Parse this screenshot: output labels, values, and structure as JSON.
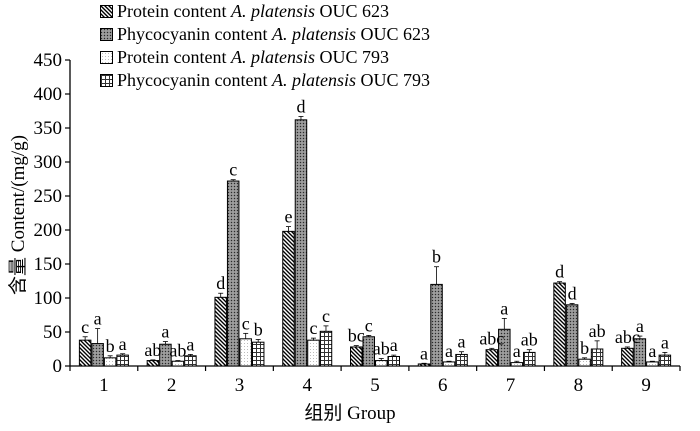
{
  "chart_data": {
    "type": "bar",
    "xlabel": "组别 Group",
    "ylabel": "含量 Content/(mg/g)",
    "ylim": [
      0,
      450
    ],
    "yticks": [
      "0",
      "50",
      "100",
      "150",
      "200",
      "250",
      "300",
      "350",
      "400",
      "450"
    ],
    "categories": [
      "1",
      "2",
      "3",
      "4",
      "5",
      "6",
      "7",
      "8",
      "9"
    ],
    "series": [
      {
        "name_prefix": "Protein content",
        "name_species": "A. platensis",
        "name_strain": "OUC 623",
        "pattern": "diag",
        "values": [
          38,
          8,
          101,
          198,
          28,
          3,
          24,
          122,
          26
        ],
        "errors": [
          5,
          1,
          6,
          7,
          2,
          1,
          2,
          2,
          2
        ],
        "letters": [
          "c",
          "ab",
          "d",
          "e",
          "bc",
          "a",
          "abc",
          "d",
          "abc"
        ]
      },
      {
        "name_prefix": "Phycocyanin content",
        "name_species": "A. platensis",
        "name_strain": "OUC 623",
        "pattern": "cross",
        "values": [
          33,
          32,
          272,
          362,
          43,
          120,
          54,
          90,
          40
        ],
        "errors": [
          22,
          4,
          2,
          5,
          2,
          26,
          16,
          2,
          4
        ],
        "letters": [
          "a",
          "a",
          "c",
          "d",
          "c",
          "b",
          "a",
          "d",
          "a"
        ]
      },
      {
        "name_prefix": "Protein content",
        "name_species": "A. platensis",
        "name_strain": "OUC 793",
        "pattern": "dots",
        "values": [
          12,
          7,
          40,
          38,
          8,
          6,
          5,
          10,
          6
        ],
        "errors": [
          3,
          1,
          8,
          3,
          3,
          1,
          2,
          2,
          1
        ],
        "letters": [
          "b",
          "ab",
          "c",
          "c",
          "ab",
          "a",
          "a",
          "b",
          "a"
        ]
      },
      {
        "name_prefix": "Phycocyanin content",
        "name_species": "A. platensis",
        "name_strain": "OUC 793",
        "pattern": "grid",
        "values": [
          16,
          15,
          35,
          51,
          14,
          17,
          20,
          25,
          16
        ],
        "errors": [
          2,
          2,
          4,
          8,
          2,
          4,
          4,
          12,
          4
        ],
        "letters": [
          "a",
          "a",
          "b",
          "c",
          "a",
          "a",
          "ab",
          "ab",
          "a"
        ]
      }
    ],
    "legend": "top-left"
  }
}
